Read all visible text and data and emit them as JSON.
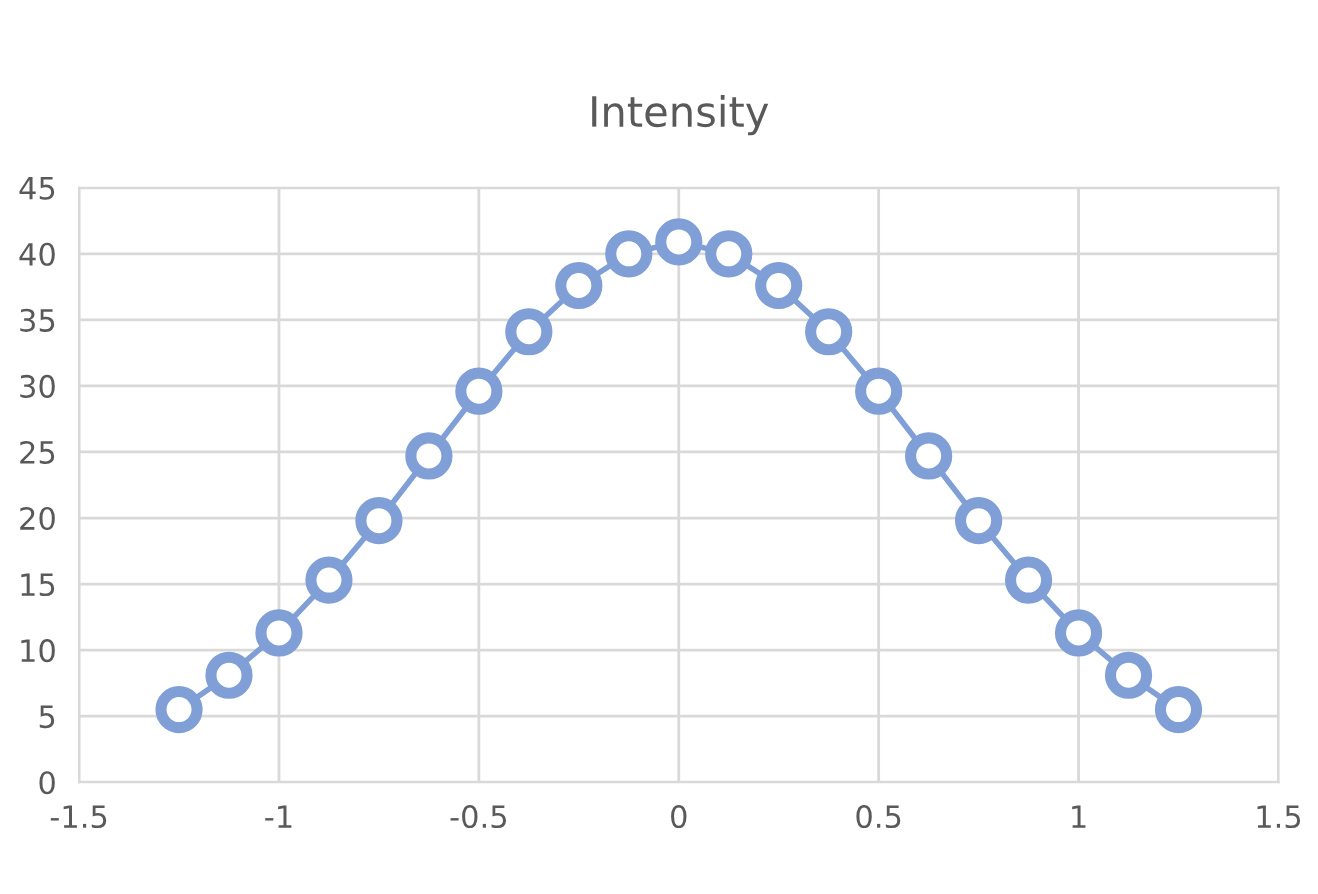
{
  "chart_data": {
    "type": "line",
    "title": "Intensity",
    "x": [
      -1.25,
      -1.125,
      -1.0,
      -0.875,
      -0.75,
      -0.625,
      -0.5,
      -0.375,
      -0.25,
      -0.125,
      0.0,
      0.125,
      0.25,
      0.375,
      0.5,
      0.625,
      0.75,
      0.875,
      1.0,
      1.125,
      1.25
    ],
    "series": [
      {
        "color": "#7f9fd6",
        "values": [
          5.5,
          8.1,
          11.3,
          15.3,
          19.8,
          24.7,
          29.6,
          34.1,
          37.6,
          40.0,
          40.9,
          40.0,
          37.6,
          34.1,
          29.6,
          24.7,
          19.8,
          15.3,
          11.3,
          8.1,
          5.5
        ]
      }
    ],
    "xlim": [
      -1.5,
      1.5
    ],
    "xticks": [
      -1.5,
      -1,
      -0.5,
      0,
      0.5,
      1,
      1.5
    ],
    "ylim": [
      0,
      45
    ],
    "yticks": [
      0,
      5,
      10,
      15,
      20,
      25,
      30,
      35,
      40,
      45
    ],
    "grid": true,
    "marker": "circle",
    "line_style": "solid"
  }
}
